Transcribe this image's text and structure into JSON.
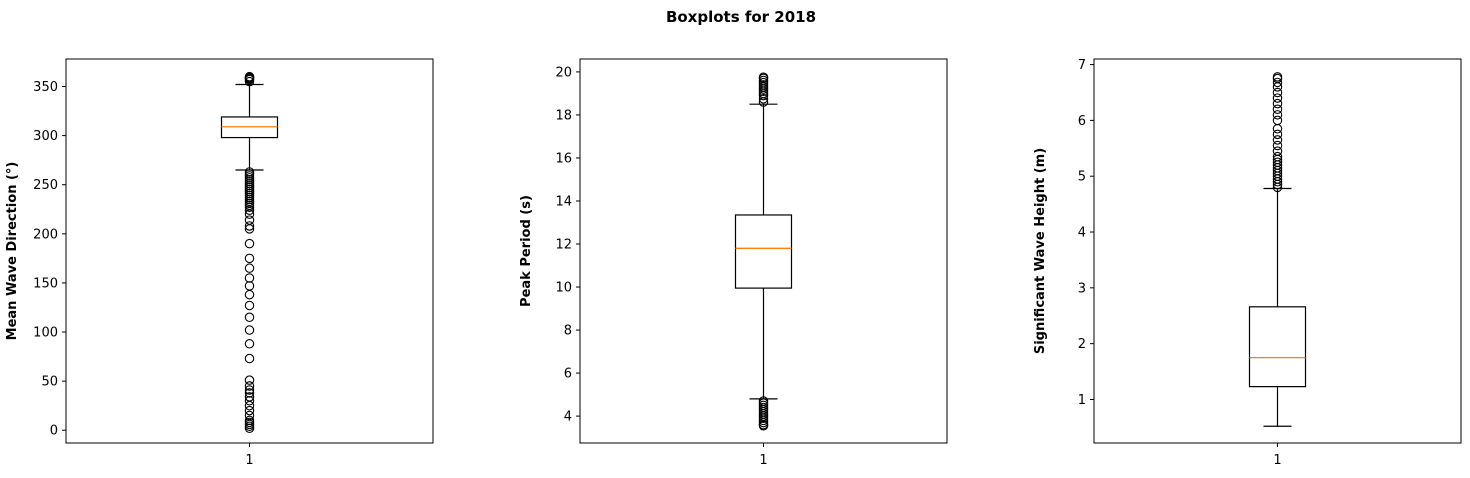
{
  "title": "Boxplots for 2018",
  "chart_data": [
    {
      "type": "boxplot",
      "category": "1",
      "ylabel": "Mean Wave Direction (°)",
      "ylim": [
        -13,
        378
      ],
      "yticks": [
        0,
        50,
        100,
        150,
        200,
        250,
        300,
        350
      ],
      "stats": {
        "whislo": 265,
        "q1": 298,
        "med": 309,
        "q3": 319,
        "whishi": 352
      },
      "fliers": [
        355,
        357,
        358,
        359,
        360,
        263,
        261,
        259,
        257,
        255,
        253,
        251,
        249,
        247,
        245,
        243,
        241,
        239,
        237,
        235,
        233,
        231,
        229,
        227,
        224,
        220,
        214,
        208,
        205,
        190,
        175,
        165,
        155,
        147,
        138,
        127,
        115,
        102,
        88,
        73,
        51,
        45,
        41,
        38,
        34,
        30,
        25,
        20,
        15,
        10,
        8,
        6,
        4,
        2
      ]
    },
    {
      "type": "boxplot",
      "category": "1",
      "ylabel": "Peak Period (s)",
      "ylim": [
        2.75,
        20.6
      ],
      "yticks": [
        4,
        6,
        8,
        10,
        12,
        14,
        16,
        18,
        20
      ],
      "stats": {
        "whislo": 4.8,
        "q1": 9.95,
        "med": 11.8,
        "q3": 13.35,
        "whishi": 18.5
      },
      "fliers": [
        18.6,
        18.75,
        18.9,
        19.0,
        19.1,
        19.2,
        19.3,
        19.4,
        19.5,
        19.6,
        19.7,
        19.75,
        4.7,
        4.6,
        4.5,
        4.4,
        4.3,
        4.2,
        4.1,
        4.0,
        3.9,
        3.8,
        3.7,
        3.6,
        3.55
      ]
    },
    {
      "type": "boxplot",
      "category": "1",
      "ylabel": "Significant Wave Height (m)",
      "ylim": [
        0.22,
        7.1
      ],
      "yticks": [
        1,
        2,
        3,
        4,
        5,
        6,
        7
      ],
      "stats": {
        "whislo": 0.52,
        "q1": 1.23,
        "med": 1.75,
        "q3": 2.66,
        "whishi": 4.78
      },
      "fliers": [
        4.8,
        4.85,
        4.9,
        4.95,
        5.0,
        5.05,
        5.1,
        5.15,
        5.2,
        5.25,
        5.3,
        5.35,
        5.45,
        5.55,
        5.65,
        5.75,
        5.85,
        6.0,
        6.1,
        6.2,
        6.3,
        6.4,
        6.5,
        6.6,
        6.68,
        6.75,
        6.78
      ]
    }
  ]
}
